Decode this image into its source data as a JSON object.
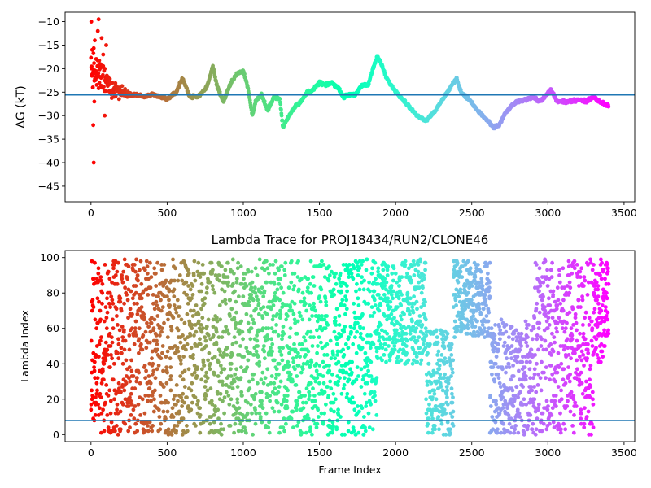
{
  "chart_data": [
    {
      "type": "scatter",
      "title": "",
      "xlabel": "",
      "ylabel": "ΔG (kT)",
      "xlim": [
        -170,
        3570
      ],
      "ylim": [
        -48.3,
        -8
      ],
      "xticks": [
        0,
        500,
        1000,
        1500,
        2000,
        2500,
        3000,
        3500
      ],
      "yticks": [
        -45,
        -40,
        -35,
        -30,
        -25,
        -20,
        -15,
        -10
      ],
      "grid": false,
      "colormap": "rainbow (reversed: red at frame 0, violet at last frame)",
      "hline": {
        "y": -25.6,
        "color": "#1f77b4"
      },
      "n_points": 3400,
      "trace_anchor_points": {
        "x": [
          0,
          30,
          60,
          100,
          150,
          200,
          250,
          300,
          350,
          400,
          450,
          500,
          560,
          600,
          650,
          700,
          760,
          800,
          830,
          870,
          920,
          960,
          1000,
          1030,
          1060,
          1080,
          1120,
          1160,
          1200,
          1240,
          1260,
          1300,
          1340,
          1380,
          1420,
          1460,
          1500,
          1540,
          1580,
          1620,
          1660,
          1700,
          1740,
          1780,
          1820,
          1850,
          1880,
          1900,
          1940,
          1980,
          2020,
          2060,
          2100,
          2140,
          2200,
          2260,
          2320,
          2360,
          2400,
          2430,
          2480,
          2540,
          2600,
          2640,
          2680,
          2720,
          2760,
          2800,
          2860,
          2900,
          2940,
          2980,
          3020,
          3060,
          3100,
          3150,
          3200,
          3250,
          3300,
          3340,
          3400
        ],
        "y": [
          -20,
          -21,
          -22,
          -23,
          -24,
          -25,
          -25.5,
          -25.5,
          -26,
          -25.5,
          -26,
          -26.5,
          -25,
          -22,
          -26,
          -26,
          -24,
          -19.5,
          -24,
          -27,
          -23,
          -21,
          -20.5,
          -24,
          -30,
          -27,
          -25.5,
          -29,
          -26,
          -26.5,
          -32.5,
          -30,
          -28,
          -27,
          -25,
          -24.5,
          -23,
          -23.5,
          -23,
          -24,
          -26,
          -25.5,
          -25.5,
          -23.5,
          -23.5,
          -20,
          -17.5,
          -18.5,
          -22,
          -24,
          -25.5,
          -27,
          -28.5,
          -30,
          -31,
          -29,
          -26,
          -24,
          -22,
          -25,
          -26.5,
          -29,
          -31,
          -32.5,
          -32,
          -29.5,
          -28,
          -27,
          -26.5,
          -26,
          -27,
          -26,
          -24.5,
          -27,
          -27,
          -27,
          -26.5,
          -27,
          -26,
          -27,
          -28
        ]
      },
      "early_outliers": [
        [
          2,
          -10
        ],
        [
          5,
          -20
        ],
        [
          8,
          -16
        ],
        [
          12,
          -24
        ],
        [
          15,
          -32
        ],
        [
          18,
          -40
        ],
        [
          22,
          -27
        ],
        [
          25,
          -14
        ],
        [
          30,
          -21
        ],
        [
          38,
          -18
        ],
        [
          45,
          -12
        ],
        [
          50,
          -9.5
        ],
        [
          55,
          -23
        ],
        [
          60,
          -19
        ],
        [
          70,
          -13.5
        ],
        [
          80,
          -17
        ],
        [
          90,
          -30
        ],
        [
          100,
          -15
        ]
      ]
    },
    {
      "type": "scatter",
      "title": "Lambda Trace for PROJ18434/RUN2/CLONE46",
      "xlabel": "Frame Index",
      "ylabel": "Lambda Index",
      "xlim": [
        -170,
        3570
      ],
      "ylim": [
        -4,
        104
      ],
      "xticks": [
        0,
        500,
        1000,
        1500,
        2000,
        2500,
        3000,
        3500
      ],
      "yticks": [
        0,
        20,
        40,
        60,
        80,
        100
      ],
      "grid": false,
      "colormap": "rainbow (reversed: red at frame 0, violet at last frame)",
      "hline": {
        "y": 8,
        "color": "#1f77b4"
      },
      "n_points": 3400,
      "segments": [
        {
          "x_from": 0,
          "x_to": 1880,
          "lambda_min": 0,
          "lambda_max": 99,
          "note": "uniform spread across all lambda values"
        },
        {
          "x_from": 1880,
          "x_to": 2200,
          "lambda_min": 40,
          "lambda_max": 99,
          "note": "concentrated high, drifting down"
        },
        {
          "x_from": 2200,
          "x_to": 2380,
          "lambda_min": 0,
          "lambda_max": 60,
          "note": "concentrated low"
        },
        {
          "x_from": 2380,
          "x_to": 2620,
          "lambda_min": 55,
          "lambda_max": 99,
          "note": "concentrated high"
        },
        {
          "x_from": 2620,
          "x_to": 2900,
          "lambda_min": 0,
          "lambda_max": 65,
          "note": "concentrated low"
        },
        {
          "x_from": 2900,
          "x_to": 3300,
          "lambda_min": 0,
          "lambda_max": 99,
          "note": "spread"
        },
        {
          "x_from": 3300,
          "x_to": 3400,
          "lambda_min": 40,
          "lambda_max": 99,
          "note": "concentrated high"
        }
      ]
    }
  ]
}
